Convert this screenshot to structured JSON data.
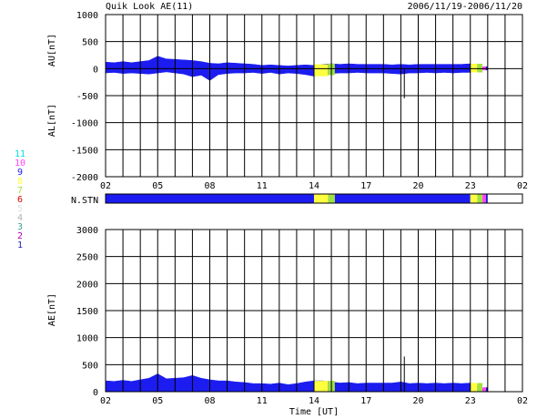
{
  "header": {
    "title": "Quik Look AE(11)",
    "date_range": "2006/11/19-2006/11/20"
  },
  "legend": {
    "items": [
      {
        "label": "11",
        "color": "#00e0e0"
      },
      {
        "label": "10",
        "color": "#ff40ff"
      },
      {
        "label": "9",
        "color": "#2020ff"
      },
      {
        "label": "8",
        "color": "#ffff40"
      },
      {
        "label": "7",
        "color": "#a0e040"
      },
      {
        "label": "6",
        "color": "#e00000"
      },
      {
        "label": "5",
        "color": "#e0e0e0"
      },
      {
        "label": "4",
        "color": "#b0b0b0"
      },
      {
        "label": "3",
        "color": "#40a0a0"
      },
      {
        "label": "2",
        "color": "#b000b0"
      },
      {
        "label": "1",
        "color": "#2020c0"
      }
    ]
  },
  "colors": {
    "data_fill": "#1c1cf0",
    "yellow": "#ffff00",
    "green": "#80e020",
    "grid": "#000000"
  },
  "chart_data": [
    {
      "type": "area",
      "name": "AU/AL panel",
      "ylabel_upper": "AU[nT]",
      "ylabel_lower": "AL[nT]",
      "ylim": [
        -2000,
        1000
      ],
      "yticks": [
        1000,
        500,
        0,
        -500,
        -1000,
        -1500,
        -2000
      ],
      "xlim": [
        2,
        26
      ],
      "xticks": [
        "02",
        "05",
        "08",
        "11",
        "14",
        "17",
        "20",
        "23",
        "02"
      ],
      "grid": true,
      "x": [
        2.0,
        2.5,
        3.0,
        3.5,
        4.0,
        4.5,
        5.0,
        5.5,
        6.0,
        6.5,
        7.0,
        7.5,
        8.0,
        8.5,
        9.0,
        9.5,
        10.0,
        10.5,
        11.0,
        11.5,
        12.0,
        12.5,
        13.0,
        13.5,
        14.0,
        14.5,
        15.0,
        15.5,
        16.0,
        16.5,
        17.0,
        17.5,
        18.0,
        18.5,
        19.0,
        19.5,
        20.0,
        20.5,
        21.0,
        21.5,
        22.0,
        22.5,
        23.0,
        23.5,
        24.0
      ],
      "au": [
        120,
        110,
        130,
        110,
        130,
        150,
        230,
        180,
        170,
        160,
        150,
        130,
        100,
        90,
        110,
        100,
        90,
        80,
        60,
        70,
        60,
        50,
        60,
        70,
        60,
        80,
        90,
        80,
        90,
        80,
        80,
        80,
        80,
        70,
        80,
        70,
        80,
        80,
        80,
        80,
        80,
        80,
        90,
        40,
        0
      ],
      "al": [
        -80,
        -70,
        -90,
        -80,
        -90,
        -100,
        -80,
        -60,
        -80,
        -100,
        -150,
        -120,
        -220,
        -110,
        -90,
        -80,
        -80,
        -70,
        -90,
        -70,
        -100,
        -80,
        -90,
        -110,
        -140,
        -120,
        -90,
        -80,
        -80,
        -70,
        -80,
        -80,
        -80,
        -90,
        -100,
        -80,
        -80,
        -70,
        -80,
        -70,
        -80,
        -70,
        -70,
        -30,
        0
      ],
      "spikes": [
        {
          "x": 19.2,
          "al": -550
        }
      ]
    },
    {
      "type": "table",
      "name": "N.STN",
      "label": "N.STN",
      "segments": [
        {
          "from": 2.0,
          "to": 14.0,
          "stations": 11
        },
        {
          "from": 14.0,
          "to": 14.8,
          "stations": 8
        },
        {
          "from": 14.8,
          "to": 15.2,
          "stations": 7
        },
        {
          "from": 15.2,
          "to": 23.0,
          "stations": 11
        },
        {
          "from": 23.0,
          "to": 23.4,
          "stations": 8
        },
        {
          "from": 23.4,
          "to": 23.7,
          "stations": 7
        },
        {
          "from": 23.7,
          "to": 23.9,
          "stations": 10
        },
        {
          "from": 23.9,
          "to": 24.0,
          "stations": 1
        }
      ]
    },
    {
      "type": "area",
      "name": "AE panel",
      "ylabel": "AE[nT]",
      "xlabel": "Time [UT]",
      "ylim": [
        0,
        3000
      ],
      "yticks": [
        3000,
        2500,
        2000,
        1500,
        1000,
        500,
        0
      ],
      "xlim": [
        2,
        26
      ],
      "xticks": [
        "02",
        "05",
        "08",
        "11",
        "14",
        "17",
        "20",
        "23",
        "02"
      ],
      "grid": true,
      "x": [
        2.0,
        2.5,
        3.0,
        3.5,
        4.0,
        4.5,
        5.0,
        5.5,
        6.0,
        6.5,
        7.0,
        7.5,
        8.0,
        8.5,
        9.0,
        9.5,
        10.0,
        10.5,
        11.0,
        11.5,
        12.0,
        12.5,
        13.0,
        13.5,
        14.0,
        14.5,
        15.0,
        15.5,
        16.0,
        16.5,
        17.0,
        17.5,
        18.0,
        18.5,
        19.0,
        19.5,
        20.0,
        20.5,
        21.0,
        21.5,
        22.0,
        22.5,
        23.0,
        23.5,
        24.0
      ],
      "ae": [
        200,
        190,
        210,
        190,
        220,
        250,
        330,
        240,
        250,
        260,
        300,
        250,
        220,
        200,
        200,
        180,
        170,
        150,
        150,
        140,
        160,
        130,
        150,
        180,
        200,
        200,
        180,
        160,
        170,
        150,
        160,
        160,
        160,
        160,
        180,
        150,
        160,
        150,
        160,
        150,
        160,
        150,
        160,
        80,
        0
      ],
      "spikes": [
        {
          "x": 19.2,
          "ae": 650
        }
      ]
    }
  ]
}
